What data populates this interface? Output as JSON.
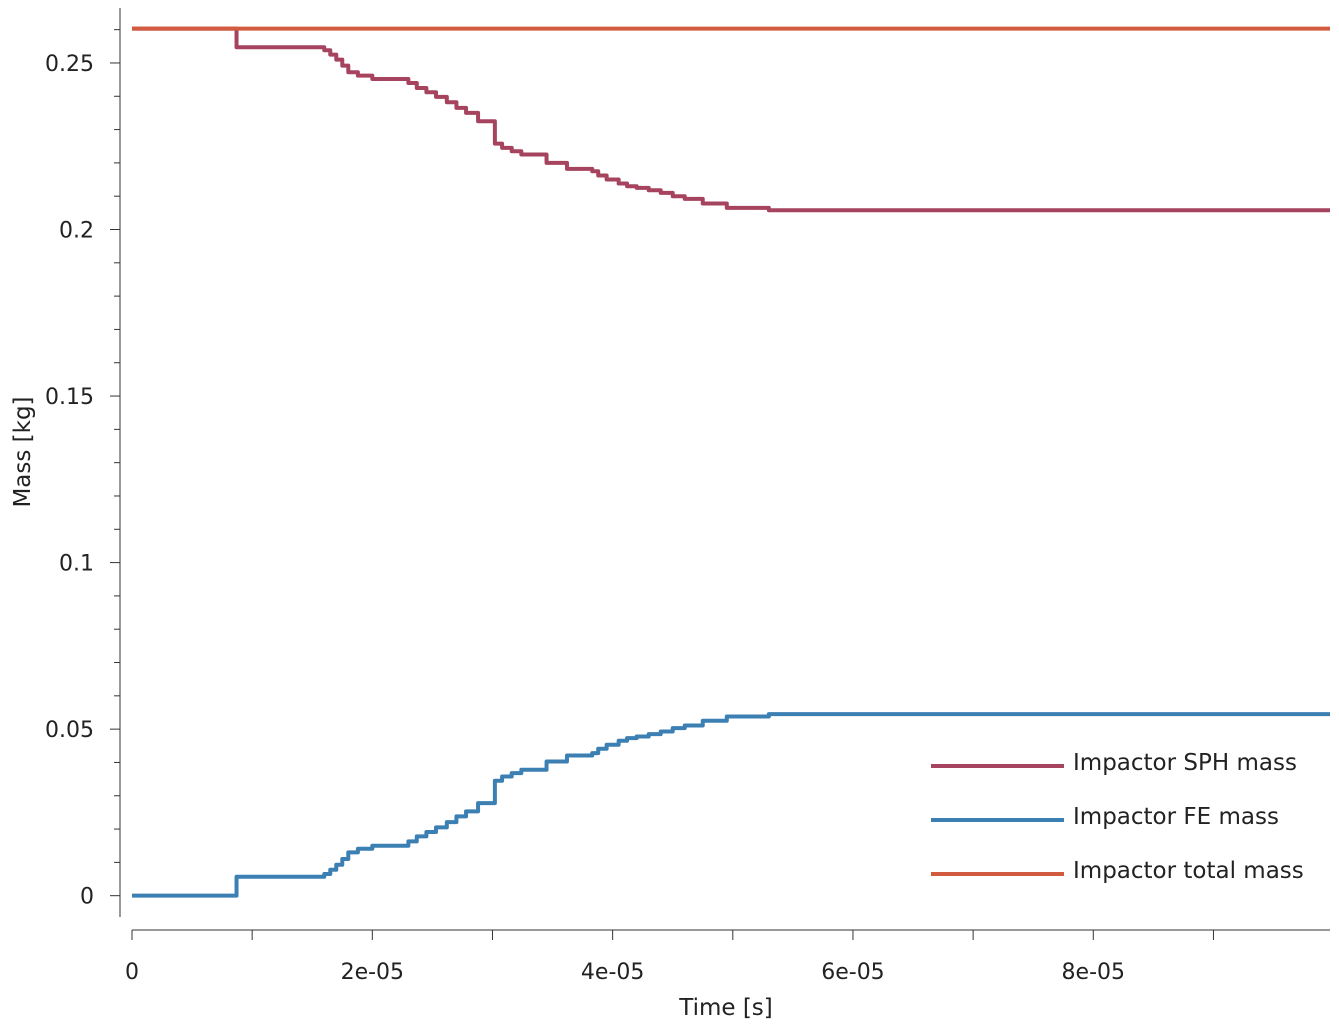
{
  "chart_data": {
    "type": "line",
    "xlabel": "Time [s]",
    "ylabel": "Mass [kg]",
    "xlim": [
      0,
      9.97e-05
    ],
    "ylim": [
      -0.0064,
      0.2665
    ],
    "x_ticks": [
      0,
      1e-05,
      2e-05,
      3e-05,
      4e-05,
      5e-05,
      6e-05,
      7e-05,
      8e-05,
      9e-05
    ],
    "x_tick_labels": [
      {
        "value": 0,
        "label": "0"
      },
      {
        "value": 2e-05,
        "label": "2e-05"
      },
      {
        "value": 4e-05,
        "label": "4e-05"
      },
      {
        "value": 6e-05,
        "label": "6e-05"
      },
      {
        "value": 8e-05,
        "label": "8e-05"
      }
    ],
    "y_tick_labels": [
      {
        "value": 0,
        "label": "0"
      },
      {
        "value": 0.05,
        "label": "0.05"
      },
      {
        "value": 0.1,
        "label": "0.1"
      },
      {
        "value": 0.15,
        "label": "0.15"
      },
      {
        "value": 0.2,
        "label": "0.2"
      },
      {
        "value": 0.25,
        "label": "0.25"
      }
    ],
    "y_minor_step": 0.01,
    "grid": false,
    "legend_position": "lower-right",
    "series": [
      {
        "name": "Impactor SPH mass",
        "color": "#a6435f",
        "step": true,
        "x": [
          0,
          8.5e-06,
          8.7e-06,
          1.55e-05,
          1.6e-05,
          1.65e-05,
          1.7e-05,
          1.75e-05,
          1.8e-05,
          1.88e-05,
          2e-05,
          2.2e-05,
          2.3e-05,
          2.37e-05,
          2.45e-05,
          2.53e-05,
          2.62e-05,
          2.7e-05,
          2.78e-05,
          2.88e-05,
          3.02e-05,
          3.08e-05,
          3.16e-05,
          3.24e-05,
          3.45e-05,
          3.62e-05,
          3.83e-05,
          3.88e-05,
          3.95e-05,
          4.05e-05,
          4.12e-05,
          4.2e-05,
          4.3e-05,
          4.4e-05,
          4.5e-05,
          4.6e-05,
          4.75e-05,
          4.95e-05,
          5.3e-05,
          9.97e-05
        ],
        "y": [
          0.2603,
          0.2603,
          0.2547,
          0.2547,
          0.2538,
          0.2525,
          0.251,
          0.2492,
          0.2472,
          0.2462,
          0.2452,
          0.2452,
          0.244,
          0.2425,
          0.2412,
          0.2398,
          0.2382,
          0.2365,
          0.235,
          0.2325,
          0.2258,
          0.2245,
          0.2235,
          0.2225,
          0.22,
          0.2182,
          0.2175,
          0.2162,
          0.215,
          0.2138,
          0.213,
          0.2125,
          0.2118,
          0.211,
          0.21,
          0.2092,
          0.2078,
          0.2065,
          0.2058,
          0.2058
        ]
      },
      {
        "name": "Impactor FE mass",
        "color": "#3c7fb3",
        "step": true,
        "x": [
          0,
          8.5e-06,
          8.7e-06,
          1.55e-05,
          1.6e-05,
          1.65e-05,
          1.7e-05,
          1.75e-05,
          1.8e-05,
          1.88e-05,
          2e-05,
          2.2e-05,
          2.3e-05,
          2.37e-05,
          2.45e-05,
          2.53e-05,
          2.62e-05,
          2.7e-05,
          2.78e-05,
          2.88e-05,
          3.02e-05,
          3.08e-05,
          3.16e-05,
          3.24e-05,
          3.45e-05,
          3.62e-05,
          3.83e-05,
          3.88e-05,
          3.95e-05,
          4.05e-05,
          4.12e-05,
          4.2e-05,
          4.3e-05,
          4.4e-05,
          4.5e-05,
          4.6e-05,
          4.75e-05,
          4.95e-05,
          5.3e-05,
          9.97e-05
        ],
        "y": [
          0,
          0,
          0.0057,
          0.0057,
          0.0065,
          0.0078,
          0.0093,
          0.011,
          0.013,
          0.0141,
          0.015,
          0.015,
          0.0163,
          0.0178,
          0.0191,
          0.0205,
          0.0221,
          0.0238,
          0.0253,
          0.0278,
          0.0345,
          0.0358,
          0.0368,
          0.0378,
          0.0403,
          0.0421,
          0.0428,
          0.0441,
          0.0453,
          0.0465,
          0.0473,
          0.0478,
          0.0485,
          0.0493,
          0.0503,
          0.0511,
          0.0525,
          0.0538,
          0.0545,
          0.0545
        ]
      },
      {
        "name": "Impactor total mass",
        "color": "#d25a3f",
        "step": false,
        "x": [
          0,
          9.97e-05
        ],
        "y": [
          0.2603,
          0.2603
        ]
      }
    ]
  }
}
